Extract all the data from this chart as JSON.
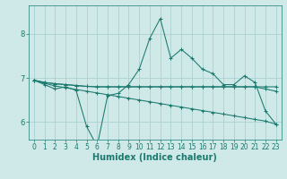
{
  "x": [
    0,
    1,
    2,
    3,
    4,
    5,
    6,
    7,
    8,
    9,
    10,
    11,
    12,
    13,
    14,
    15,
    16,
    17,
    18,
    19,
    20,
    21,
    22,
    23
  ],
  "line_zigzag": [
    6.95,
    6.85,
    6.75,
    6.8,
    6.72,
    5.9,
    5.45,
    6.6,
    6.65,
    6.85,
    7.2,
    7.9,
    8.35,
    7.45,
    7.65,
    7.45,
    7.2,
    7.1,
    6.85,
    6.85,
    7.05,
    6.9,
    6.25,
    5.95
  ],
  "line_flat1": [
    6.95,
    6.9,
    6.87,
    6.85,
    6.83,
    6.81,
    6.8,
    6.8,
    6.8,
    6.8,
    6.8,
    6.8,
    6.8,
    6.8,
    6.8,
    6.8,
    6.8,
    6.8,
    6.8,
    6.8,
    6.8,
    6.8,
    6.8,
    6.8
  ],
  "line_flat2": [
    6.95,
    6.9,
    6.87,
    6.85,
    6.83,
    6.81,
    6.8,
    6.8,
    6.8,
    6.8,
    6.8,
    6.8,
    6.8,
    6.8,
    6.8,
    6.8,
    6.8,
    6.8,
    6.8,
    6.8,
    6.8,
    6.8,
    6.75,
    6.7
  ],
  "line_decline": [
    6.95,
    6.88,
    6.82,
    6.78,
    6.74,
    6.7,
    6.66,
    6.62,
    6.58,
    6.54,
    6.5,
    6.46,
    6.42,
    6.38,
    6.34,
    6.3,
    6.26,
    6.22,
    6.18,
    6.14,
    6.1,
    6.06,
    6.02,
    5.95
  ],
  "line_color": "#1a7a6e",
  "bg_color": "#cfe8e8",
  "grid_color": "#a8cccc",
  "xlabel": "Humidex (Indice chaleur)",
  "ylim": [
    5.6,
    8.65
  ],
  "xlim": [
    -0.5,
    23.5
  ],
  "yticks": [
    6,
    7,
    8
  ],
  "xticks": [
    0,
    1,
    2,
    3,
    4,
    5,
    6,
    7,
    8,
    9,
    10,
    11,
    12,
    13,
    14,
    15,
    16,
    17,
    18,
    19,
    20,
    21,
    22,
    23
  ],
  "tick_fontsize": 5.5,
  "label_fontsize": 7.0
}
